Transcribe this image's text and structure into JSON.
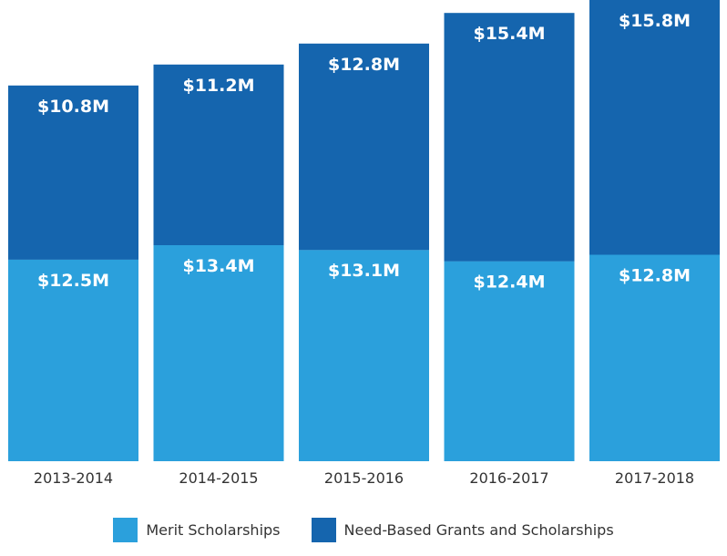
{
  "chart_data": {
    "type": "bar",
    "stacked": true,
    "categories": [
      "2013-2014",
      "2014-2015",
      "2015-2016",
      "2016-2017",
      "2017-2018"
    ],
    "series": [
      {
        "name": "Merit Scholarships",
        "values": [
          12.5,
          13.4,
          13.1,
          12.4,
          12.8
        ],
        "labels": [
          "$12.5M",
          "$13.4M",
          "$13.1M",
          "$12.4M",
          "$12.8M"
        ],
        "color": "#2ba0dc"
      },
      {
        "name": "Need-Based Grants and Scholarships",
        "values": [
          10.8,
          11.2,
          12.8,
          15.4,
          15.8
        ],
        "labels": [
          "$10.8M",
          "$11.2M",
          "$12.8M",
          "$15.4M",
          "$15.8M"
        ],
        "color": "#1565ae"
      }
    ],
    "title": "",
    "xlabel": "",
    "ylabel": "",
    "ylim": [
      0,
      28.6
    ],
    "grid": false,
    "legend_position": "bottom-center"
  }
}
